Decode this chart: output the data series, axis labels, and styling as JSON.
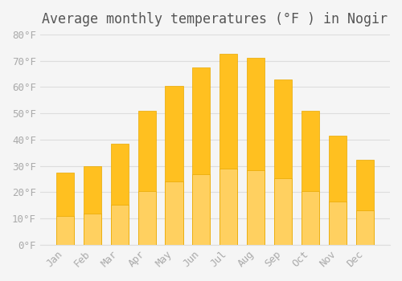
{
  "title": "Average monthly temperatures (°F ) in Nogir",
  "months": [
    "Jan",
    "Feb",
    "Mar",
    "Apr",
    "May",
    "Jun",
    "Jul",
    "Aug",
    "Sep",
    "Oct",
    "Nov",
    "Dec"
  ],
  "values": [
    27.5,
    30.0,
    38.5,
    51.0,
    60.5,
    67.5,
    72.5,
    71.0,
    63.0,
    51.0,
    41.5,
    32.5
  ],
  "bar_color_top": "#FFC020",
  "bar_color_bottom": "#FFD060",
  "bar_edge_color": "#E8A800",
  "background_color": "#F5F5F5",
  "grid_color": "#DDDDDD",
  "text_color": "#AAAAAA",
  "title_color": "#555555",
  "ylim": [
    0,
    80
  ],
  "yticks": [
    0,
    10,
    20,
    30,
    40,
    50,
    60,
    70,
    80
  ],
  "title_fontsize": 12,
  "tick_fontsize": 9
}
